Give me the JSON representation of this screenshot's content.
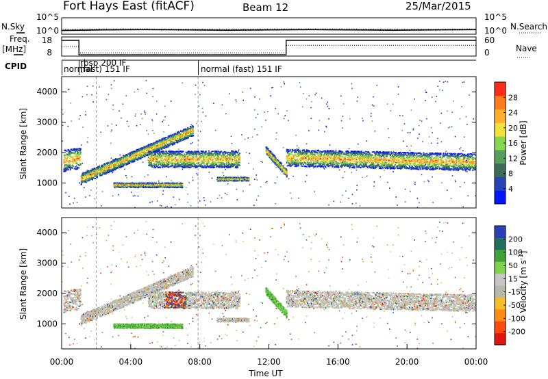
{
  "header": {
    "title": "Fort Hays East (fitACF)",
    "beam": "Beam 12",
    "date": "25/Mar/2015"
  },
  "labels": {
    "nsky": "N.Sky",
    "nsearch": "N.Search",
    "freq": "Freq.",
    "freq_unit": "[MHz]",
    "nave": "Nave",
    "cpid": "CPID",
    "slant_range": "Slant Range [km]",
    "power_label": "Power [dB]",
    "velocity_label": "Velocity [m s",
    "velocity_exp": "-1",
    "velocity_close": "]",
    "time_label": "Time UT"
  },
  "cpid_segments": [
    {
      "label": "normal",
      "start_h": 0.0,
      "end_h": 1.0
    },
    {
      "label": "rbsp 200 IF",
      "start_h": 1.0,
      "end_h": 7.9
    },
    {
      "label": "(fast) 151 IF",
      "start_h": 1.0,
      "end_h": 7.9
    },
    {
      "label": "normal (fast) 151 IF",
      "start_h": 7.9,
      "end_h": 24.0
    }
  ],
  "colors": {
    "power_scale": [
      "#0018ff",
      "#2545b7",
      "#3d6b58",
      "#55a05b",
      "#88d64f",
      "#f3e23a",
      "#ffb02d",
      "#ff7a1a",
      "#ff2d17"
    ],
    "velocity_scale": [
      "#e0150d",
      "#ff4a0e",
      "#ff8a14",
      "#f7bd27",
      "#b8b8ab",
      "#c6c6c6",
      "#80d34f",
      "#3fa33a",
      "#236f5b",
      "#2a40b8"
    ]
  },
  "chart_data": [
    {
      "type": "line",
      "name": "noise",
      "series": [
        {
          "name": "N.Sky",
          "style": "solid",
          "values": [
            1,
            1.2,
            1.3,
            1.2,
            1.1,
            1.2,
            1.3,
            1.2,
            1.1,
            1.2,
            1.3
          ]
        },
        {
          "name": "N.Search",
          "style": "dotted",
          "values": [
            1.1,
            1.3,
            1.3,
            1.2,
            1.2,
            1.3,
            1.3,
            1.3,
            1.2,
            1.2,
            1.3
          ]
        }
      ],
      "ylim": [
        0,
        5
      ],
      "yticks_left": [
        "10^5",
        "10^0"
      ],
      "yticks_right": [
        "10^5",
        "10^0"
      ]
    },
    {
      "type": "line",
      "name": "freq-nave",
      "series": [
        {
          "name": "Freq.",
          "style": "solid",
          "x": [
            0,
            1.0,
            1.0,
            13.0,
            13.0,
            24
          ],
          "values": [
            18,
            18,
            8.4,
            8.4,
            18,
            18
          ]
        },
        {
          "name": "Nave",
          "style": "dotted",
          "x": [
            0,
            1.0,
            1.0,
            13.0,
            13.0,
            24
          ],
          "values": [
            35,
            35,
            10,
            10,
            40,
            40
          ]
        }
      ],
      "yticks_left": [
        "18",
        "8"
      ],
      "yticks_right": [
        "60",
        "0"
      ]
    },
    {
      "type": "heatmap",
      "name": "power",
      "xlabel": "",
      "ylabel": "Slant Range [km]",
      "xlim": [
        0,
        24
      ],
      "ylim": [
        180,
        4500
      ],
      "yticks": [
        1000,
        2000,
        3000,
        4000
      ],
      "colorbar_label": "Power [dB]",
      "colorbar_ticks": [
        "4",
        "8",
        "12",
        "16",
        "20",
        "24",
        "28"
      ],
      "bands": [
        {
          "from_h": 0.1,
          "to_h": 1.1,
          "r0": 1750,
          "r1": 1850,
          "width": 700
        },
        {
          "from_h": 1.1,
          "to_h": 7.6,
          "r0": 1150,
          "r1": 2750,
          "width": 350
        },
        {
          "from_h": 5.0,
          "to_h": 10.3,
          "r0": 1800,
          "r1": 1800,
          "width": 550
        },
        {
          "from_h": 3.0,
          "to_h": 7.0,
          "r0": 950,
          "r1": 950,
          "width": 150
        },
        {
          "from_h": 9.0,
          "to_h": 10.8,
          "r0": 1150,
          "r1": 1150,
          "width": 120
        },
        {
          "from_h": 11.8,
          "to_h": 13.0,
          "r0": 2100,
          "r1": 1350,
          "width": 250
        },
        {
          "from_h": 13.0,
          "to_h": 24.0,
          "r0": 1850,
          "r1": 1700,
          "width": 550
        }
      ]
    },
    {
      "type": "heatmap",
      "name": "velocity",
      "xlabel": "Time UT",
      "ylabel": "Slant Range [km]",
      "xlim": [
        0,
        24
      ],
      "ylim": [
        180,
        4500
      ],
      "xticks": [
        "00:00",
        "04:00",
        "08:00",
        "12:00",
        "16:00",
        "20:00",
        "00:00"
      ],
      "yticks": [
        1000,
        2000,
        3000,
        4000
      ],
      "colorbar_label": "Velocity [m s-1]",
      "colorbar_ticks": [
        "-200",
        "-100",
        "-50",
        "-15",
        "15",
        "50",
        "100",
        "200"
      ]
    }
  ]
}
